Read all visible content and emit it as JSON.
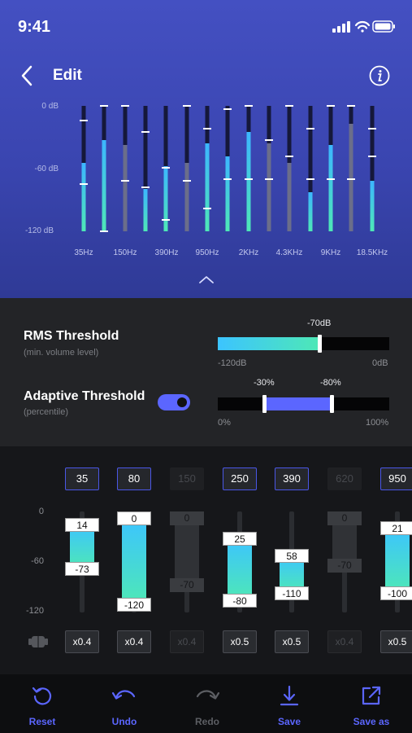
{
  "status": {
    "time": "9:41"
  },
  "header": {
    "title": "Edit"
  },
  "eq": {
    "axis_labels": [
      "0 dB",
      "-60 dB",
      "-120 dB"
    ],
    "freq_labels": [
      "35Hz",
      "150Hz",
      "390Hz",
      "950Hz",
      "2KHz",
      "4.3KHz",
      "9KHz",
      "18.5KHz"
    ]
  },
  "rms": {
    "label": "RMS Threshold",
    "sub": "(min. volume level)",
    "value_label": "-70dB",
    "min_label": "-120dB",
    "max_label": "0dB",
    "value_fraction": 0.42
  },
  "adaptive": {
    "label": "Adaptive Threshold",
    "sub": "(percentile)",
    "low_label": "-30%",
    "high_label": "-80%",
    "min_label": "0%",
    "max_label": "100%",
    "enabled": true
  },
  "bands": {
    "axis_labels": [
      "0",
      "-60",
      "-120"
    ],
    "freqs": [
      "35",
      "80",
      "150",
      "250",
      "390",
      "620",
      "950"
    ],
    "top_values": [
      "14",
      "0",
      "0",
      "25",
      "58",
      "0",
      "21"
    ],
    "bottom_values": [
      "-73",
      "-120",
      "-70",
      "-80",
      "-110",
      "-70",
      "-100"
    ],
    "multipliers": [
      "x0.4",
      "x0.4",
      "x0.4",
      "x0.5",
      "x0.5",
      "x0.4",
      "x0.5"
    ]
  },
  "toolbar": {
    "reset": "Reset",
    "undo": "Undo",
    "redo": "Redo",
    "save": "Save",
    "save_as": "Save as"
  },
  "colors": {
    "accent": "#5b66ff",
    "teal": "#4ee8b6",
    "cyan": "#3cc4ff",
    "header_bg": "#4450c2"
  }
}
